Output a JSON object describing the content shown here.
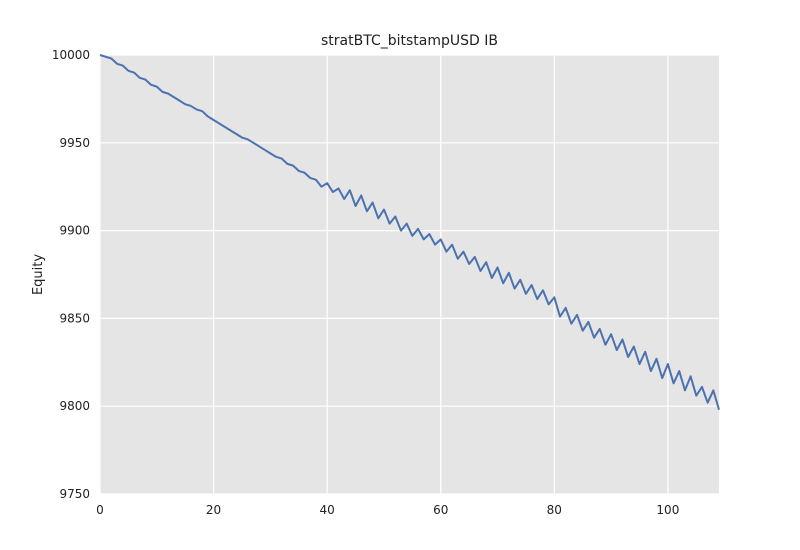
{
  "chart_data": {
    "type": "line",
    "title": "stratBTC_bitstampUSD IB",
    "xlabel": "",
    "ylabel": "Equity",
    "xlim": [
      0,
      109
    ],
    "ylim": [
      9750,
      10000
    ],
    "xticks": [
      0,
      20,
      40,
      60,
      80,
      100
    ],
    "yticks": [
      9750,
      9800,
      9850,
      9900,
      9950,
      10000
    ],
    "grid": true,
    "legend": "none",
    "colors": {
      "plot_background": "#e5e5e5",
      "grid": "#ffffff",
      "line": "#4c72b0"
    },
    "series": [
      {
        "x": [
          0,
          1,
          2,
          3,
          4,
          5,
          6,
          7,
          8,
          9,
          10,
          11,
          12,
          13,
          14,
          15,
          16,
          17,
          18,
          19,
          20,
          21,
          22,
          23,
          24,
          25,
          26,
          27,
          28,
          29,
          30,
          31,
          32,
          33,
          34,
          35,
          36,
          37,
          38,
          39,
          40,
          41,
          42,
          43,
          44,
          45,
          46,
          47,
          48,
          49,
          50,
          51,
          52,
          53,
          54,
          55,
          56,
          57,
          58,
          59,
          60,
          61,
          62,
          63,
          64,
          65,
          66,
          67,
          68,
          69,
          70,
          71,
          72,
          73,
          74,
          75,
          76,
          77,
          78,
          79,
          80,
          81,
          82,
          83,
          84,
          85,
          86,
          87,
          88,
          89,
          90,
          91,
          92,
          93,
          94,
          95,
          96,
          97,
          98,
          99,
          100,
          101,
          102,
          103,
          104,
          105,
          106,
          107,
          108,
          109
        ],
        "values": [
          10000,
          9999,
          9998,
          9995,
          9994,
          9991,
          9990,
          9987,
          9986,
          9983,
          9982,
          9979,
          9978,
          9976,
          9974,
          9972,
          9971,
          9969,
          9968,
          9965,
          9963,
          9961,
          9959,
          9957,
          9955,
          9953,
          9952,
          9950,
          9948,
          9946,
          9944,
          9942,
          9941,
          9938,
          9937,
          9934,
          9933,
          9930,
          9929,
          9925,
          9927,
          9922,
          9924,
          9918,
          9923,
          9914,
          9920,
          9911,
          9916,
          9907,
          9912,
          9904,
          9908,
          9900,
          9904,
          9897,
          9901,
          9895,
          9898,
          9892,
          9895,
          9888,
          9892,
          9884,
          9888,
          9881,
          9885,
          9877,
          9882,
          9873,
          9879,
          9870,
          9876,
          9867,
          9872,
          9864,
          9869,
          9861,
          9866,
          9858,
          9862,
          9851,
          9856,
          9847,
          9852,
          9843,
          9848,
          9839,
          9844,
          9835,
          9841,
          9832,
          9838,
          9828,
          9834,
          9824,
          9831,
          9820,
          9827,
          9816,
          9824,
          9813,
          9820,
          9809,
          9817,
          9806,
          9811,
          9802,
          9809,
          9798
        ]
      }
    ]
  }
}
